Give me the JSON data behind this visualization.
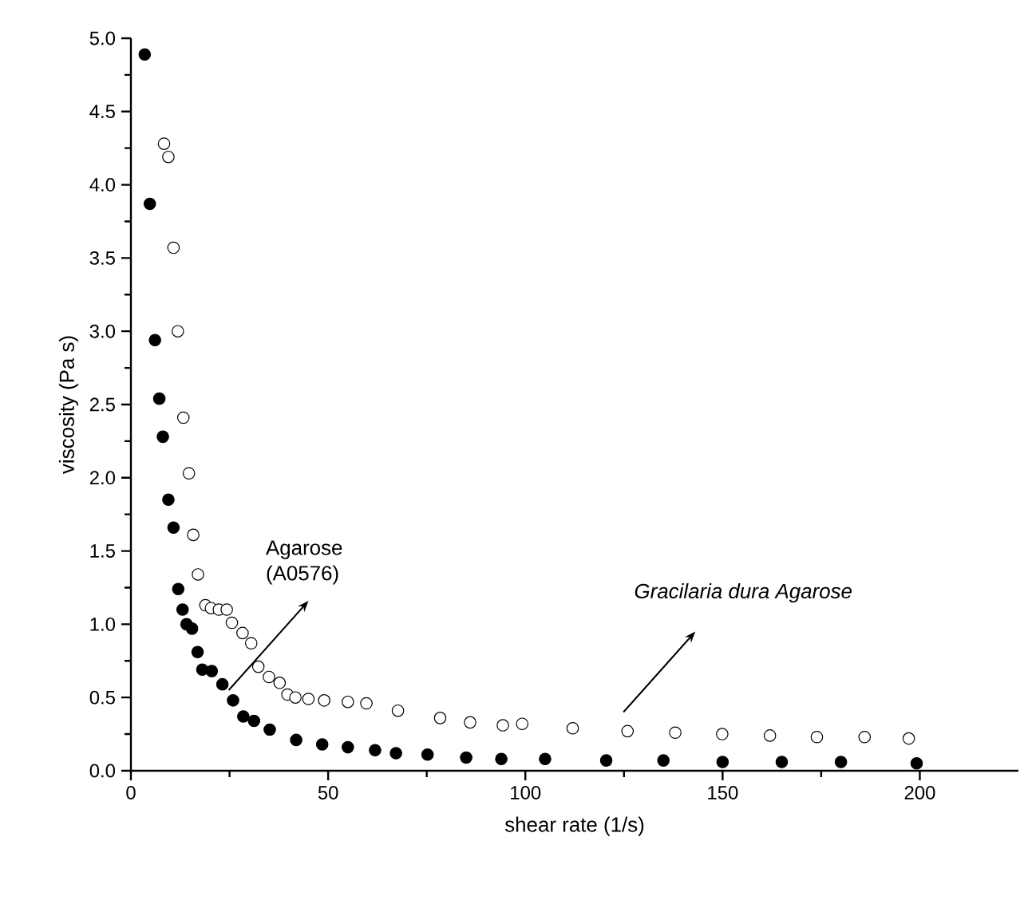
{
  "chart_data": {
    "type": "scatter",
    "xlabel": "shear rate (1/s)",
    "ylabel": "viscosity (Pa s)",
    "xlim": [
      0,
      225
    ],
    "ylim": [
      0,
      5.0
    ],
    "xticks": [
      0,
      50,
      100,
      150,
      200
    ],
    "yticks": [
      {
        "value": 0,
        "label": "0.0"
      },
      {
        "value": 0.5,
        "label": "0.5"
      },
      {
        "value": 1,
        "label": "1.0"
      },
      {
        "value": 1.5,
        "label": "1.5"
      },
      {
        "value": 2,
        "label": "2.0"
      },
      {
        "value": 2.5,
        "label": "2.5"
      },
      {
        "value": 3,
        "label": "3.0"
      },
      {
        "value": 3.5,
        "label": "3.5"
      },
      {
        "value": 4,
        "label": "4.0"
      },
      {
        "value": 4.5,
        "label": "4.5"
      },
      {
        "value": 5,
        "label": "5.0"
      }
    ],
    "marker": "circle",
    "grid": false,
    "series": [
      {
        "color": "#000000",
        "x": [
          3.5,
          4.8,
          6.1,
          7.2,
          8.1,
          9.5,
          10.8,
          12.0,
          13.1,
          14.1,
          15.5,
          16.9,
          18.1,
          20.5,
          23.2,
          25.9,
          28.5,
          31.2,
          35.2,
          41.9,
          48.5,
          55,
          61.9,
          67.2,
          75.2,
          85,
          93.9,
          105,
          120.5,
          135,
          150,
          165,
          180,
          199.2
        ],
        "values": [
          4.89,
          3.87,
          2.94,
          2.54,
          2.28,
          1.85,
          1.66,
          1.24,
          1.1,
          1.0,
          0.97,
          0.81,
          0.69,
          0.68,
          0.59,
          0.48,
          0.37,
          0.34,
          0.28,
          0.21,
          0.18,
          0.16,
          0.14,
          0.12,
          0.11,
          0.09,
          0.08,
          0.08,
          0.07,
          0.07,
          0.06,
          0.06,
          0.06,
          0.05
        ]
      },
      {
        "color": "#ffffff",
        "x": [
          8.4,
          9.5,
          10.8,
          11.9,
          13.3,
          14.7,
          15.8,
          17.0,
          18.9,
          20.3,
          22.3,
          24.3,
          25.6,
          28.3,
          30.5,
          32.3,
          35.0,
          37.7,
          39.7,
          41.7,
          45,
          49.0,
          55,
          59.7,
          67.7,
          78.4,
          86,
          94.3,
          99.2,
          112,
          125.9,
          138,
          149.9,
          162,
          173.9,
          186,
          197.2
        ],
        "values": [
          4.28,
          4.19,
          3.57,
          3.0,
          2.41,
          2.03,
          1.61,
          1.34,
          1.13,
          1.11,
          1.1,
          1.1,
          1.01,
          0.94,
          0.87,
          0.71,
          0.64,
          0.6,
          0.52,
          0.5,
          0.49,
          0.48,
          0.47,
          0.46,
          0.41,
          0.36,
          0.33,
          0.31,
          0.32,
          0.29,
          0.27,
          0.26,
          0.25,
          0.24,
          0.23,
          0.23,
          0.22
        ]
      }
    ],
    "annotations": [
      {
        "text": "Agarose (A0576)",
        "x": 24.8,
        "y": 0.55
      },
      "Gracilaria dura Agarose"
    ]
  }
}
